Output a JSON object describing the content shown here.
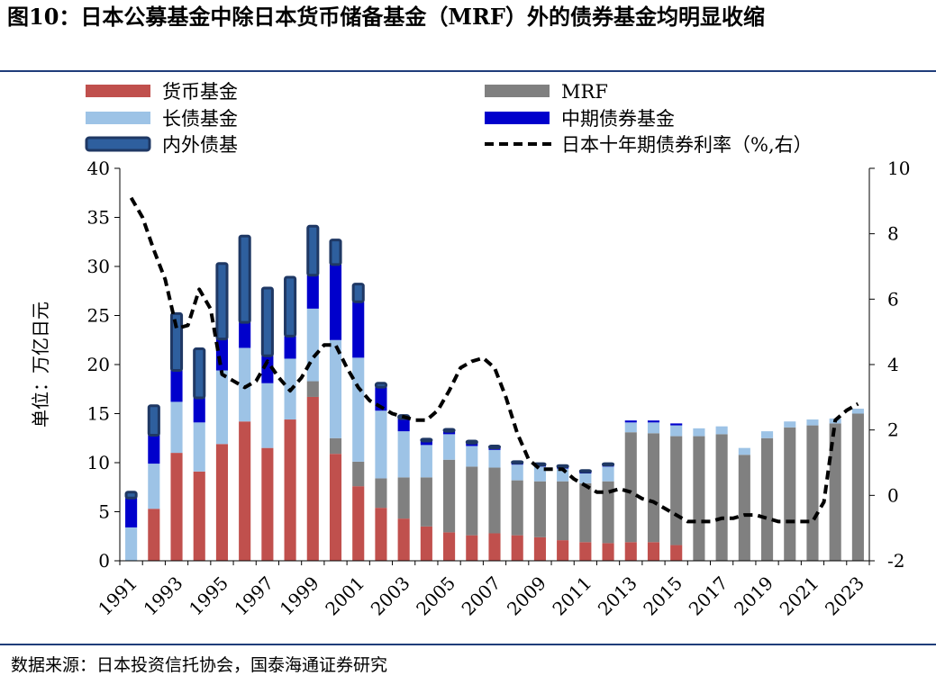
{
  "figure": {
    "title": "图10：日本公募基金中除日本货币储备基金（MRF）外的债券基金均明显收缩",
    "source": "数据来源：日本投资信托协会，国泰海通证券研究"
  },
  "chart_data": {
    "type": "bar",
    "stacked": true,
    "title": "图10：日本公募基金中除日本货币储备基金（MRF）外的债券基金均明显收缩",
    "ylabel": "单位：万亿日元",
    "y2label": "%",
    "ylim": [
      0,
      40
    ],
    "y2lim": [
      -2,
      10
    ],
    "yticks": [
      "0",
      "5",
      "10",
      "15",
      "20",
      "25",
      "30",
      "35",
      "40"
    ],
    "y2ticks": [
      "-2",
      "0",
      "2",
      "4",
      "6",
      "8",
      "10"
    ],
    "x": [
      1991,
      1992,
      1993,
      1994,
      1995,
      1996,
      1997,
      1998,
      1999,
      2000,
      2001,
      2002,
      2003,
      2004,
      2005,
      2006,
      2007,
      2008,
      2009,
      2010,
      2011,
      2012,
      2013,
      2014,
      2015,
      2016,
      2017,
      2018,
      2019,
      2020,
      2021,
      2022,
      2023
    ],
    "xtick_labels": [
      "1991",
      "1993",
      "1995",
      "1997",
      "1999",
      "2001",
      "2003",
      "2005",
      "2007",
      "2009",
      "2011",
      "2013",
      "2015",
      "2017",
      "2019",
      "2021",
      "2023"
    ],
    "legend_position": "top",
    "legend": [
      "货币基金",
      "MRF",
      "长债基金",
      "中期债券基金",
      "内外债基",
      "日本十年期债券利率（%,右）"
    ],
    "series": [
      {
        "name": "货币基金",
        "kind": "bar",
        "color": "#c0504d",
        "values": [
          0,
          5.3,
          11.0,
          9.1,
          11.9,
          14.2,
          11.5,
          14.4,
          16.7,
          10.9,
          7.6,
          5.4,
          4.3,
          3.5,
          2.9,
          2.6,
          2.8,
          2.6,
          2.4,
          2.1,
          1.9,
          1.8,
          1.9,
          1.9,
          1.6,
          0,
          0,
          0,
          0,
          0,
          0,
          0,
          0
        ]
      },
      {
        "name": "MRF",
        "kind": "bar",
        "color": "#808080",
        "values": [
          0,
          0,
          0,
          0,
          0,
          0,
          0,
          0,
          1.6,
          1.6,
          2.5,
          3.0,
          4.2,
          5.0,
          7.4,
          7.0,
          6.7,
          5.6,
          5.7,
          6.0,
          6.0,
          6.3,
          11.2,
          11.1,
          11.1,
          12.7,
          12.9,
          10.8,
          12.5,
          13.6,
          13.8,
          14.0,
          15.0
        ]
      },
      {
        "name": "长债基金",
        "kind": "bar",
        "color": "#9dc3e6",
        "values": [
          3.4,
          4.6,
          5.2,
          5.0,
          7.5,
          7.5,
          6.6,
          6.2,
          7.4,
          10.0,
          10.6,
          6.9,
          4.7,
          3.3,
          2.6,
          2.1,
          1.8,
          1.6,
          1.5,
          1.3,
          1.0,
          1.5,
          1.0,
          1.1,
          1.1,
          0.8,
          0.8,
          0.7,
          0.7,
          0.6,
          0.6,
          0.5,
          0.5
        ]
      },
      {
        "name": "中期债券基金",
        "kind": "bar",
        "color": "#0000cc",
        "values": [
          3.0,
          2.9,
          3.2,
          2.5,
          3.2,
          2.6,
          2.8,
          2.3,
          3.4,
          7.7,
          5.7,
          2.4,
          1.3,
          0.4,
          0.3,
          0.3,
          0.2,
          0.2,
          0.2,
          0.2,
          0.2,
          0.2,
          0.2,
          0.2,
          0.2,
          0,
          0,
          0,
          0,
          0,
          0,
          0,
          0
        ]
      },
      {
        "name": "内外债基",
        "kind": "bar",
        "color": "#2e5f9e",
        "values": [
          0.6,
          3.0,
          5.8,
          5.0,
          7.7,
          8.8,
          6.9,
          6.0,
          5.0,
          2.5,
          1.8,
          0.4,
          0.3,
          0.2,
          0.2,
          0.2,
          0.2,
          0.1,
          0.1,
          0.1,
          0.1,
          0.1,
          0,
          0,
          0,
          0,
          0,
          0,
          0,
          0,
          0,
          0,
          0
        ]
      },
      {
        "name": "日本十年期债券利率（%,右）",
        "kind": "line",
        "axis": "right",
        "color": "#000000",
        "x": [
          1991,
          1991.5,
          1992,
          1992.5,
          1993,
          1993.5,
          1994,
          1994.5,
          1995,
          1995.5,
          1996,
          1996.5,
          1997,
          1997.5,
          1998,
          1998.5,
          1999,
          1999.5,
          2000,
          2000.5,
          2001,
          2001.5,
          2002,
          2002.5,
          2003,
          2003.5,
          2004,
          2004.5,
          2005,
          2005.5,
          2006,
          2006.5,
          2007,
          2007.5,
          2008,
          2008.5,
          2009,
          2009.5,
          2010,
          2010.5,
          2011,
          2011.5,
          2012,
          2012.5,
          2013,
          2013.5,
          2014,
          2014.5,
          2015,
          2015.5,
          2016,
          2016.5,
          2017,
          2017.5,
          2018,
          2018.5,
          2019,
          2019.5,
          2020,
          2020.5,
          2021,
          2021.5,
          2022,
          2022.5,
          2023
        ],
        "values": [
          9.1,
          8.5,
          7.5,
          6.6,
          5.1,
          5.2,
          6.3,
          5.7,
          3.7,
          3.5,
          3.3,
          3.5,
          4.1,
          3.6,
          3.2,
          3.6,
          4.2,
          4.6,
          4.6,
          3.9,
          3.3,
          2.9,
          2.7,
          2.5,
          2.4,
          2.3,
          2.3,
          2.6,
          3.2,
          3.9,
          4.1,
          4.2,
          3.9,
          3.0,
          1.9,
          1.1,
          0.8,
          0.8,
          0.8,
          0.5,
          0.3,
          0.1,
          0.1,
          0.2,
          0.1,
          -0.1,
          -0.2,
          -0.4,
          -0.6,
          -0.8,
          -0.8,
          -0.8,
          -0.7,
          -0.7,
          -0.6,
          -0.6,
          -0.7,
          -0.8,
          -0.8,
          -0.8,
          -0.8,
          -0.2,
          2.3,
          2.6,
          2.8
        ]
      }
    ]
  }
}
